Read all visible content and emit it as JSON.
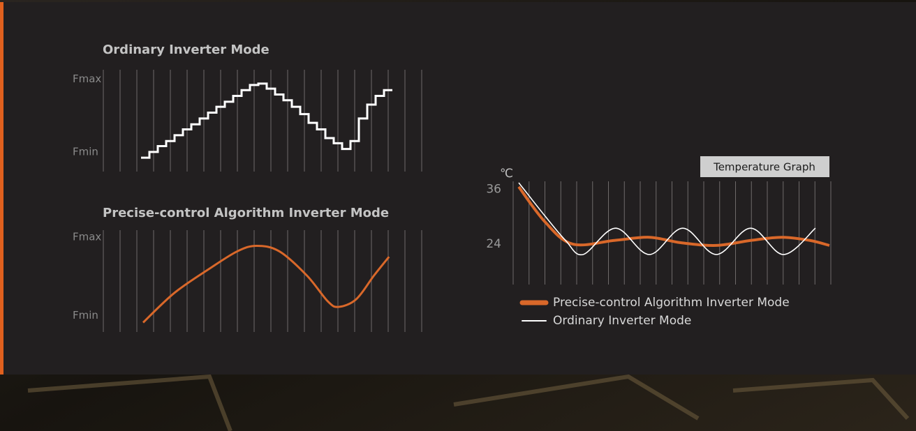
{
  "chart_data": [
    {
      "type": "line",
      "title": "Ordinary Inverter Mode",
      "step": true,
      "color": "#ffffff",
      "x": [
        0,
        1,
        2,
        3,
        4,
        5,
        6,
        7,
        8,
        9,
        10,
        11,
        12,
        13,
        14,
        15,
        16,
        17,
        18,
        19,
        20,
        21,
        22,
        23,
        24,
        25,
        26,
        27,
        28,
        29
      ],
      "values": [
        -0.08,
        0,
        0.08,
        0.15,
        0.23,
        0.31,
        0.38,
        0.46,
        0.54,
        0.62,
        0.69,
        0.77,
        0.85,
        0.92,
        0.94,
        0.87,
        0.79,
        0.71,
        0.62,
        0.52,
        0.4,
        0.31,
        0.19,
        0.12,
        0.04,
        0.15,
        0.46,
        0.65,
        0.77,
        0.85
      ],
      "xlim": [
        -4.5,
        33.5
      ],
      "ylim": [
        -0.27,
        1.13
      ],
      "yticks": [
        {
          "value": 1,
          "label": "Fmax"
        },
        {
          "value": 0,
          "label": "Fmin"
        }
      ]
    },
    {
      "type": "line",
      "title": "Precise-control Algorithm Inverter Mode",
      "smooth": true,
      "color": "#d9682a",
      "x": [
        0.25,
        4,
        8.2,
        11.5,
        13.8,
        16.5,
        19.8,
        22.3,
        23.6,
        25.7,
        27.8,
        29.6
      ],
      "values": [
        -0.09,
        0.29,
        0.6,
        0.82,
        0.89,
        0.82,
        0.51,
        0.18,
        0.11,
        0.21,
        0.51,
        0.75
      ],
      "xlim": [
        -4.5,
        33.5
      ],
      "ylim": [
        -0.21,
        1.09
      ],
      "yticks": [
        {
          "value": 1,
          "label": "Fmax"
        },
        {
          "value": 0,
          "label": "Fmin"
        }
      ]
    },
    {
      "type": "line",
      "title": "Temperature Graph",
      "smooth": true,
      "y_unit": "℃",
      "xlim": [
        0,
        20
      ],
      "ylim": [
        15.1,
        37.8
      ],
      "yticks": [
        36,
        24
      ],
      "series": [
        {
          "name": "Precise-control Algorithm Inverter Mode",
          "color": "#d9682a",
          "x": [
            0.35,
            2.0,
            3.74,
            6.37,
            8.57,
            10.55,
            12.79,
            14.95,
            16.92,
            18.68,
            19.91
          ],
          "values": [
            36.6,
            28.9,
            24,
            24.8,
            25.5,
            24.3,
            23.7,
            24.8,
            25.5,
            24.8,
            23.7
          ]
        },
        {
          "name": "Ordinary Inverter Mode",
          "color": "#ffffff",
          "x": [
            0.35,
            2.0,
            3.3,
            4.4,
            6.45,
            8.57,
            10.68,
            12.79,
            14.95,
            17.01,
            19.03
          ],
          "values": [
            37.5,
            30.2,
            24.8,
            21.7,
            27.5,
            21.7,
            27.5,
            21.7,
            27.5,
            21.7,
            27.5
          ]
        }
      ]
    }
  ]
}
